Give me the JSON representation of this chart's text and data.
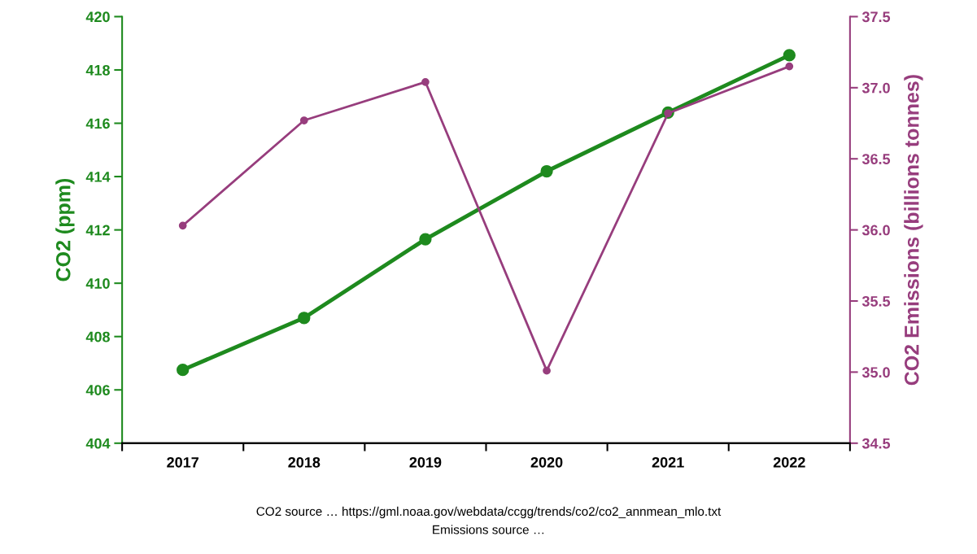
{
  "chart_data": {
    "type": "line",
    "ylabel": "CO2 (ppm)",
    "y2label": "CO2 Emissions (billions tonnes)",
    "categories": [
      "2017",
      "2018",
      "2019",
      "2020",
      "2021",
      "2022"
    ],
    "series": [
      {
        "color": "#1e8a1e",
        "values": [
          406.75,
          408.7,
          411.65,
          414.2,
          416.4,
          418.55
        ]
      },
      {
        "color": "#973d7d",
        "axis": "y2",
        "values": [
          36.03,
          36.77,
          37.04,
          35.01,
          36.82,
          37.15
        ]
      }
    ],
    "ylim": [
      404,
      420
    ],
    "yticks": [
      404,
      406,
      408,
      410,
      412,
      414,
      416,
      418,
      420
    ],
    "y2lim": [
      34.5,
      37.5
    ],
    "y2ticks": [
      {
        "value": 34.5,
        "label": "34.5"
      },
      {
        "value": 35.0,
        "label": "35.0"
      },
      {
        "value": 35.5,
        "label": "35.5"
      },
      {
        "value": 36.0,
        "label": "36.0"
      },
      {
        "value": 36.5,
        "label": "36.5"
      },
      {
        "value": 37.0,
        "label": "37.0"
      },
      {
        "value": 37.5,
        "label": "37.5"
      }
    ],
    "marker": "circle",
    "line_style": "solid",
    "grid": false,
    "legend": false,
    "annotations": [
      "CO2 source … https://gml.noaa.gov/webdata/ccgg/trends/co2/co2_annmean_mlo.txt",
      "Emissions source …"
    ]
  }
}
